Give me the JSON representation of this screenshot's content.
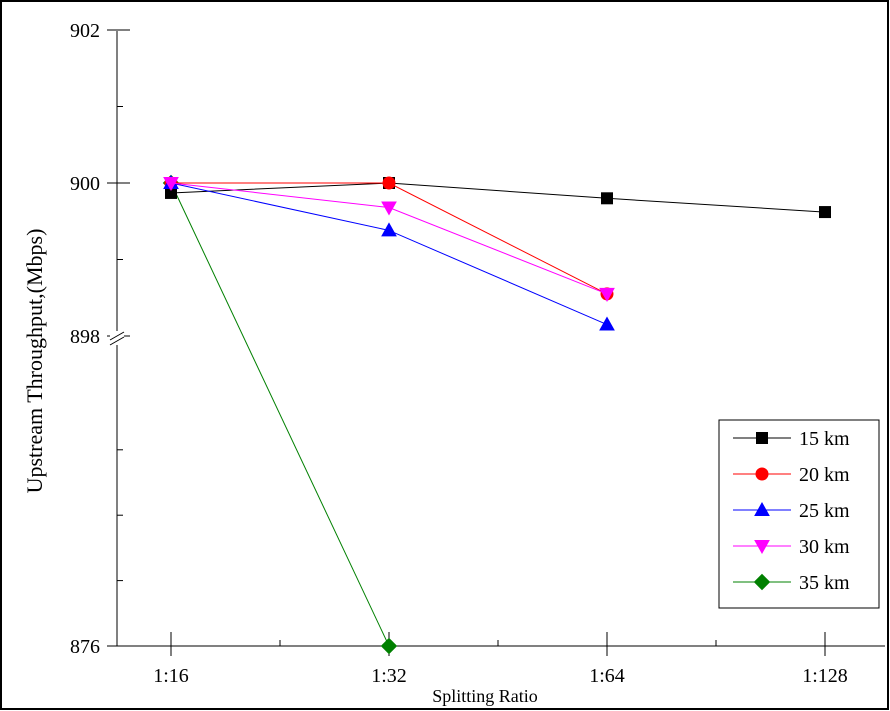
{
  "chart_data": {
    "type": "line",
    "title": "",
    "xlabel": "Splitting Ratio",
    "ylabel": "Upstream Throughput,(Mbps)",
    "categories": [
      "1:16",
      "1:32",
      "1:64",
      "1:128"
    ],
    "y_ticks": [
      "876",
      "898",
      "900",
      "902"
    ],
    "y_axis_break": {
      "lower_segment": [
        876,
        896
      ],
      "upper_segment": [
        898,
        902
      ]
    },
    "legend_position": "bottom-right",
    "series": [
      {
        "name": "15 km",
        "marker": "square",
        "color": "#000000",
        "values": [
          899.87,
          900.0,
          899.8,
          899.62
        ]
      },
      {
        "name": "20 km",
        "marker": "circle",
        "color": "#ff0000",
        "values": [
          900.0,
          900.0,
          898.55,
          null
        ]
      },
      {
        "name": "25 km",
        "marker": "triangle-up",
        "color": "#0000ff",
        "values": [
          900.0,
          899.38,
          898.15,
          null
        ]
      },
      {
        "name": "30 km",
        "marker": "triangle-down",
        "color": "#ff00ff",
        "values": [
          900.0,
          899.68,
          898.55,
          null
        ]
      },
      {
        "name": "35 km",
        "marker": "diamond",
        "color": "#008000",
        "values": [
          900.0,
          876.0,
          null,
          null
        ]
      }
    ]
  }
}
